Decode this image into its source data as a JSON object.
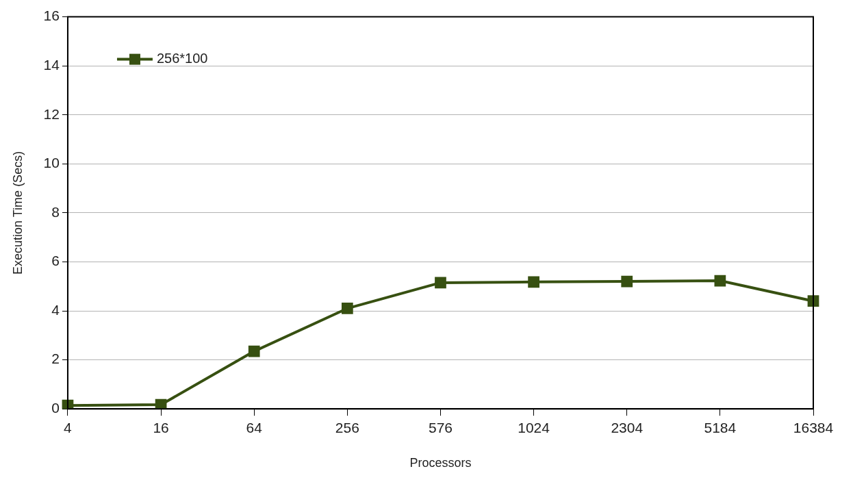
{
  "chart_data": {
    "type": "line",
    "xlabel": "Processors",
    "ylabel": "Execution Time (Secs)",
    "categories": [
      "4",
      "16",
      "64",
      "256",
      "576",
      "1024",
      "2304",
      "5184",
      "16384"
    ],
    "series": [
      {
        "name": "256*100",
        "color": "#375011",
        "values": [
          0.14,
          0.17,
          2.35,
          4.1,
          5.15,
          5.18,
          5.2,
          5.23,
          4.4
        ]
      }
    ],
    "ylim": [
      0,
      16
    ],
    "yticks": [
      0,
      2,
      4,
      6,
      8,
      10,
      12,
      14,
      16
    ],
    "grid": "y",
    "legend": "top left",
    "marker": "square",
    "line_style": "solid"
  }
}
